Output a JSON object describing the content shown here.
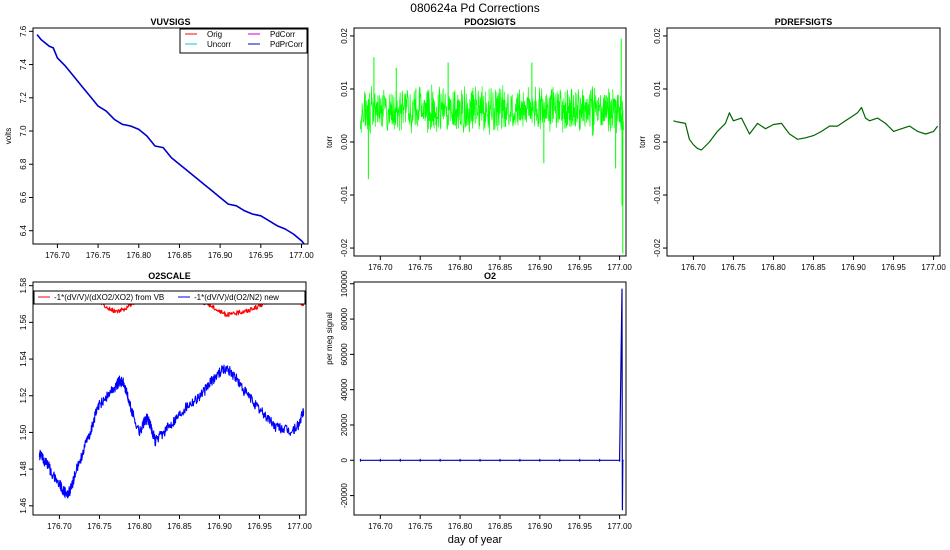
{
  "figure": {
    "title": "080624a   Pd Corrections",
    "xlabel": "day of year"
  },
  "chart_data": [
    {
      "id": "vuvsigs",
      "type": "line",
      "title": "VUVSIGS",
      "xlabel": "",
      "ylabel": "volts",
      "xlim": [
        176.67,
        177.008
      ],
      "ylim": [
        6.32,
        7.62
      ],
      "xticks": [
        176.7,
        176.75,
        176.8,
        176.85,
        176.9,
        176.95,
        177.0
      ],
      "xtick_labels": [
        "176.70",
        "176.75",
        "176.80",
        "176.85",
        "176.90",
        "176.95",
        "177.00"
      ],
      "yticks": [
        6.4,
        6.6,
        6.8,
        7.0,
        7.2,
        7.4,
        7.6
      ],
      "ytick_labels": [
        "6.4",
        "6.6",
        "6.8",
        "7.0",
        "7.2",
        "7.4",
        "7.6"
      ],
      "legend": {
        "position": "top-right",
        "entries": [
          {
            "label": "Orig",
            "color": "#ff0000"
          },
          {
            "label": "PdCorr",
            "color": "#cc00cc"
          },
          {
            "label": "Uncorr",
            "color": "#00cccc"
          },
          {
            "label": "PdPrCorr",
            "color": "#0000cc"
          }
        ]
      },
      "series": [
        {
          "name": "PdPrCorr",
          "color": "#0000cc",
          "x": [
            176.675,
            176.68,
            176.69,
            176.695,
            176.7,
            176.71,
            176.72,
            176.73,
            176.74,
            176.75,
            176.76,
            176.77,
            176.78,
            176.79,
            176.8,
            176.81,
            176.82,
            176.83,
            176.84,
            176.85,
            176.86,
            176.87,
            176.88,
            176.89,
            176.9,
            176.91,
            176.92,
            176.93,
            176.94,
            176.95,
            176.96,
            176.97,
            176.98,
            176.99,
            177.0,
            177.005
          ],
          "values": [
            7.58,
            7.55,
            7.51,
            7.5,
            7.44,
            7.39,
            7.33,
            7.27,
            7.21,
            7.15,
            7.12,
            7.07,
            7.04,
            7.03,
            7.01,
            6.97,
            6.91,
            6.9,
            6.84,
            6.8,
            6.76,
            6.72,
            6.68,
            6.64,
            6.6,
            6.56,
            6.55,
            6.52,
            6.5,
            6.49,
            6.46,
            6.43,
            6.41,
            6.38,
            6.34,
            6.31
          ]
        }
      ]
    },
    {
      "id": "pdo2sigts",
      "type": "line",
      "title": "PDO2SIGTS",
      "xlabel": "",
      "ylabel": "torr",
      "xlim": [
        176.667,
        177.008
      ],
      "ylim": [
        -0.0215,
        0.0215
      ],
      "xticks": [
        176.7,
        176.75,
        176.8,
        176.85,
        176.9,
        176.95,
        177.0
      ],
      "xtick_labels": [
        "176.70",
        "176.75",
        "176.80",
        "176.85",
        "176.90",
        "176.95",
        "177.00"
      ],
      "yticks": [
        -0.02,
        -0.01,
        0.0,
        0.01,
        0.02
      ],
      "ytick_labels": [
        "-0.02",
        "-0.01",
        "0.00",
        "0.01",
        "0.02"
      ],
      "series": [
        {
          "name": "PDO2SIGTS",
          "color": "#00ff00",
          "style": "dense-noise",
          "band_center": 0.006,
          "band_halfwidth": 0.005,
          "x_range": [
            176.675,
            177.005
          ],
          "spikes": [
            {
              "x": 176.685,
              "value": -0.007
            },
            {
              "x": 176.692,
              "value": 0.016
            },
            {
              "x": 176.72,
              "value": 0.014
            },
            {
              "x": 176.785,
              "value": 0.015
            },
            {
              "x": 176.89,
              "value": 0.015
            },
            {
              "x": 176.905,
              "value": -0.004
            },
            {
              "x": 176.995,
              "value": -0.005
            },
            {
              "x": 177.002,
              "value": 0.0195
            },
            {
              "x": 177.004,
              "value": -0.021
            },
            {
              "x": 177.003,
              "value": -0.012
            }
          ]
        }
      ]
    },
    {
      "id": "pdrefsigts",
      "type": "line",
      "title": "PDREFSIGTS",
      "xlabel": "",
      "ylabel": "torr",
      "xlim": [
        176.667,
        177.008
      ],
      "ylim": [
        -0.0215,
        0.0215
      ],
      "xticks": [
        176.7,
        176.75,
        176.8,
        176.85,
        176.9,
        176.95,
        177.0
      ],
      "xtick_labels": [
        "176.70",
        "176.75",
        "176.80",
        "176.85",
        "176.90",
        "176.95",
        "177.00"
      ],
      "yticks": [
        -0.02,
        -0.01,
        0.0,
        0.01,
        0.02
      ],
      "ytick_labels": [
        "-0.02",
        "-0.01",
        "0.00",
        "0.01",
        "0.02"
      ],
      "series": [
        {
          "name": "PDREFSIGTS",
          "color": "#006600",
          "x": [
            176.675,
            176.68,
            176.69,
            176.695,
            176.7,
            176.705,
            176.71,
            176.72,
            176.73,
            176.74,
            176.745,
            176.75,
            176.76,
            176.765,
            176.77,
            176.78,
            176.79,
            176.8,
            176.81,
            176.82,
            176.83,
            176.84,
            176.85,
            176.86,
            176.87,
            176.88,
            176.89,
            176.9,
            176.905,
            176.91,
            176.915,
            176.92,
            176.93,
            176.94,
            176.95,
            176.96,
            176.97,
            176.98,
            176.99,
            177.0,
            177.005
          ],
          "values": [
            0.004,
            0.0038,
            0.0035,
            0.0005,
            -0.0005,
            -0.0012,
            -0.0015,
            0.0,
            0.002,
            0.0035,
            0.0055,
            0.004,
            0.0045,
            0.003,
            0.0015,
            0.0035,
            0.0025,
            0.0033,
            0.0035,
            0.0015,
            0.0005,
            0.0008,
            0.0012,
            0.002,
            0.003,
            0.003,
            0.004,
            0.005,
            0.0055,
            0.0065,
            0.0045,
            0.004,
            0.0045,
            0.0035,
            0.002,
            0.0025,
            0.003,
            0.002,
            0.0015,
            0.002,
            0.003
          ]
        }
      ]
    },
    {
      "id": "o2scale",
      "type": "line",
      "title": "O2SCALE",
      "xlabel": "",
      "ylabel": "",
      "xlim": [
        176.667,
        177.008
      ],
      "ylim": [
        1.455,
        1.582
      ],
      "xticks": [
        176.7,
        176.75,
        176.8,
        176.85,
        176.9,
        176.95,
        177.0
      ],
      "xtick_labels": [
        "176.70",
        "176.75",
        "176.80",
        "176.85",
        "176.90",
        "176.95",
        "177.00"
      ],
      "yticks": [
        1.46,
        1.48,
        1.5,
        1.52,
        1.54,
        1.56,
        1.58
      ],
      "ytick_labels": [
        "1.46",
        "1.48",
        "1.50",
        "1.52",
        "1.54",
        "1.56",
        "1.58"
      ],
      "legend": {
        "position": "top",
        "entries": [
          {
            "label": "-1*(dV/V)/(dXO2/XO2) from VB",
            "color": "#ff0000"
          },
          {
            "label": "-1*(dV/V)/d(O2/N2) new",
            "color": "#0000ff"
          }
        ]
      },
      "series": [
        {
          "name": "-1*(dV/V)/(dXO2/XO2) from VB",
          "color": "#ff0000",
          "x": [
            176.745,
            176.76,
            176.77,
            176.78,
            176.79,
            176.8,
            176.81,
            176.82,
            176.83,
            176.84,
            176.85,
            176.86,
            176.87,
            176.88,
            176.89,
            176.9,
            176.91,
            176.92,
            176.93,
            176.94,
            176.95,
            176.96,
            176.97,
            176.98,
            176.99,
            177.0,
            177.005
          ],
          "values": [
            1.573,
            1.568,
            1.566,
            1.567,
            1.57,
            1.572,
            1.573,
            1.572,
            1.573,
            1.574,
            1.574,
            1.573,
            1.572,
            1.571,
            1.569,
            1.566,
            1.564,
            1.565,
            1.566,
            1.567,
            1.569,
            1.571,
            1.572,
            1.573,
            1.572,
            1.571,
            1.57
          ]
        },
        {
          "name": "-1*(dV/V)/d(O2/N2) new",
          "color": "#0000ff",
          "x": [
            176.675,
            176.68,
            176.685,
            176.69,
            176.7,
            176.705,
            176.71,
            176.715,
            176.72,
            176.73,
            176.74,
            176.745,
            176.75,
            176.76,
            176.77,
            176.775,
            176.78,
            176.785,
            176.79,
            176.8,
            176.805,
            176.81,
            176.815,
            176.82,
            176.83,
            176.84,
            176.85,
            176.86,
            176.87,
            176.88,
            176.89,
            176.9,
            176.91,
            176.92,
            176.93,
            176.94,
            176.95,
            176.96,
            176.97,
            176.98,
            176.99,
            177.0,
            177.005
          ],
          "values": [
            1.488,
            1.485,
            1.483,
            1.478,
            1.472,
            1.468,
            1.466,
            1.47,
            1.478,
            1.49,
            1.502,
            1.51,
            1.515,
            1.52,
            1.525,
            1.528,
            1.527,
            1.52,
            1.512,
            1.5,
            1.505,
            1.508,
            1.502,
            1.495,
            1.5,
            1.505,
            1.51,
            1.515,
            1.518,
            1.522,
            1.528,
            1.533,
            1.535,
            1.53,
            1.523,
            1.518,
            1.512,
            1.508,
            1.503,
            1.502,
            1.5,
            1.505,
            1.512
          ]
        }
      ]
    },
    {
      "id": "o2",
      "type": "line",
      "title": "O2",
      "xlabel": "",
      "ylabel": "per meg signal",
      "xlim": [
        176.667,
        177.008
      ],
      "ylim": [
        -31000,
        101000
      ],
      "xticks": [
        176.7,
        176.75,
        176.8,
        176.85,
        176.9,
        176.95,
        177.0
      ],
      "xtick_labels": [
        "176.70",
        "176.75",
        "176.80",
        "176.85",
        "176.90",
        "176.95",
        "177.00"
      ],
      "yticks": [
        -20000,
        0,
        20000,
        40000,
        60000,
        80000,
        100000
      ],
      "ytick_labels": [
        "-20000",
        "0",
        "20000",
        "40000",
        "60000",
        "80000",
        "100000"
      ],
      "series": [
        {
          "name": "O2",
          "color": "#0000aa",
          "x": [
            176.675,
            176.7,
            176.725,
            176.75,
            176.775,
            176.8,
            176.825,
            176.85,
            176.875,
            176.9,
            176.925,
            176.95,
            176.975,
            177.0,
            177.003,
            177.0035,
            177.004,
            177.005
          ],
          "values": [
            0,
            0,
            0,
            0,
            0,
            0,
            0,
            0,
            0,
            0,
            0,
            0,
            0,
            0,
            97000,
            -28000,
            0,
            0
          ]
        }
      ]
    }
  ]
}
